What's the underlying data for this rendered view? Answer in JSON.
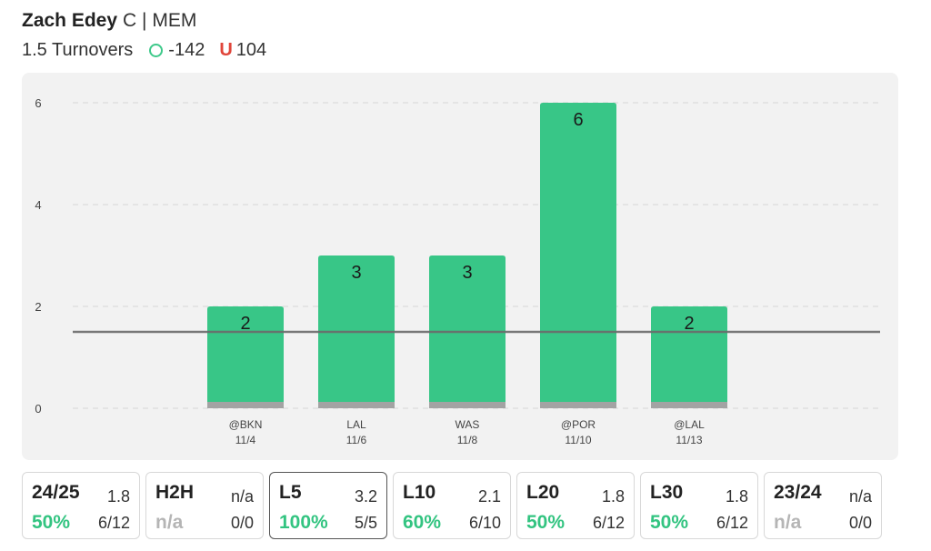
{
  "player": {
    "name": "Zach Edey",
    "position": "C | MEM"
  },
  "prop": {
    "line_label": "1.5 Turnovers",
    "over_odds": "-142",
    "under_symbol": "U",
    "under_odds": "104"
  },
  "colors": {
    "bar": "#38c687",
    "bar_base": "#a3a3a3",
    "line": "#6b6b6b",
    "grid": "#d6d6d6",
    "over": "#3ec98a",
    "under": "#e0453a",
    "hit": "#33c481"
  },
  "chart_data": {
    "type": "bar",
    "categories": [
      "@BKN",
      "LAL",
      "WAS",
      "@POR",
      "@LAL"
    ],
    "dates": [
      "11/4",
      "11/6",
      "11/8",
      "11/10",
      "11/13"
    ],
    "values": [
      2,
      3,
      3,
      6,
      2
    ],
    "data_labels": [
      "2",
      "3",
      "3",
      "6",
      "2"
    ],
    "prop_line": 1.5,
    "ylim": [
      0,
      6
    ],
    "yticks": [
      0,
      2,
      4,
      6
    ],
    "ytick_labels": [
      "0",
      "2",
      "4",
      "6"
    ],
    "grid": true
  },
  "tiles": [
    {
      "label": "24/25",
      "avg": "1.8",
      "pct": "50%",
      "record": "6/12",
      "na": false,
      "selected": false
    },
    {
      "label": "H2H",
      "avg": "n/a",
      "pct": "n/a",
      "record": "0/0",
      "na": true,
      "selected": false
    },
    {
      "label": "L5",
      "avg": "3.2",
      "pct": "100%",
      "record": "5/5",
      "na": false,
      "selected": true
    },
    {
      "label": "L10",
      "avg": "2.1",
      "pct": "60%",
      "record": "6/10",
      "na": false,
      "selected": false
    },
    {
      "label": "L20",
      "avg": "1.8",
      "pct": "50%",
      "record": "6/12",
      "na": false,
      "selected": false
    },
    {
      "label": "L30",
      "avg": "1.8",
      "pct": "50%",
      "record": "6/12",
      "na": false,
      "selected": false
    },
    {
      "label": "23/24",
      "avg": "n/a",
      "pct": "n/a",
      "record": "0/0",
      "na": true,
      "selected": false
    }
  ]
}
